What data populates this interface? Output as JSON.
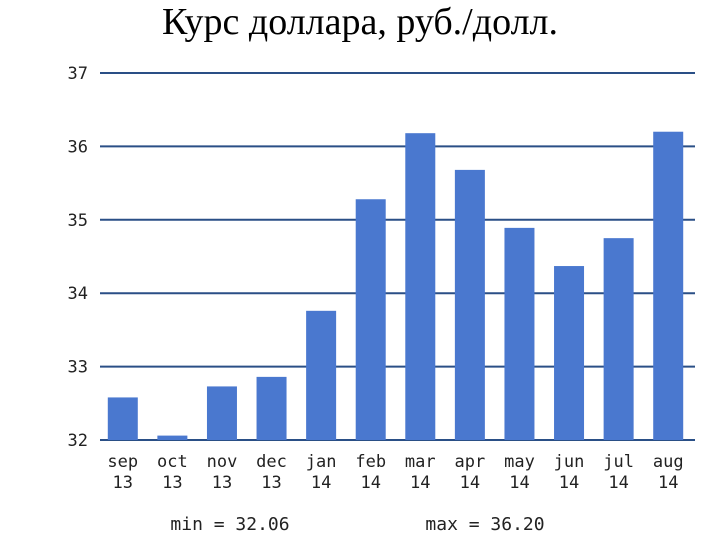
{
  "chart_data": {
    "type": "bar",
    "title": "Курс доллара, руб./долл.",
    "categories": [
      [
        "sep",
        "13"
      ],
      [
        "oct",
        "13"
      ],
      [
        "nov",
        "13"
      ],
      [
        "dec",
        "13"
      ],
      [
        "jan",
        "14"
      ],
      [
        "feb",
        "14"
      ],
      [
        "mar",
        "14"
      ],
      [
        "apr",
        "14"
      ],
      [
        "may",
        "14"
      ],
      [
        "jun",
        "14"
      ],
      [
        "jul",
        "14"
      ],
      [
        "aug",
        "14"
      ]
    ],
    "values": [
      32.58,
      32.06,
      32.73,
      32.86,
      33.76,
      35.28,
      36.18,
      35.68,
      34.89,
      34.37,
      34.75,
      36.2
    ],
    "ylim": [
      32,
      37
    ],
    "yticks": [
      "32",
      "33",
      "34",
      "35",
      "36",
      "37"
    ],
    "grid": true,
    "bar_color": "#4a78cf",
    "grid_color": "#2a4f86",
    "min_label": "min = 32.06",
    "max_label": "max = 36.20"
  }
}
